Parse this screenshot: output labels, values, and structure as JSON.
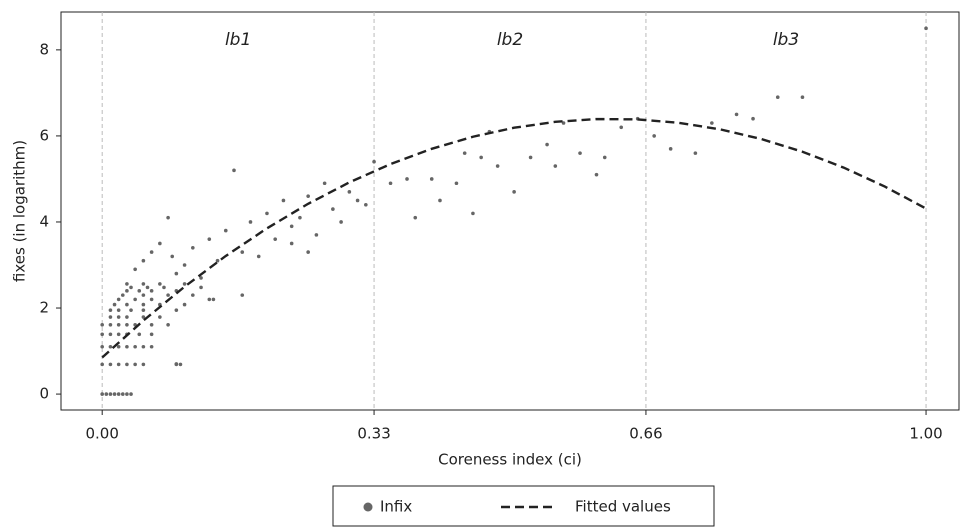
{
  "chart_data": {
    "type": "scatter",
    "x_label": "Coreness index (ci)",
    "y_label": "fixes (in logarithm)",
    "annotations": [
      "lb1",
      "lb2",
      "lb3"
    ],
    "xlim": [
      -0.05,
      1.04
    ],
    "ylim": [
      -0.37,
      8.88
    ],
    "xticks": [
      {
        "value": 0,
        "label": "0.00"
      },
      0.33,
      0.66,
      {
        "value": 1,
        "label": "1.00"
      }
    ],
    "yticks": [
      0,
      2,
      4,
      6,
      8
    ],
    "grid": "x",
    "legend": "bottom",
    "series": [
      {
        "name": "Infix",
        "type": "scatter",
        "color": "#666666",
        "x": [
          0,
          0.005,
          0.01,
          0.015,
          0.02,
          0.025,
          0.03,
          0.035,
          0,
          0.01,
          0.02,
          0.03,
          0.04,
          0.05,
          0.09,
          0.095,
          0,
          0.01,
          0.02,
          0.03,
          0.04,
          0.05,
          0.06,
          0,
          0.01,
          0.02,
          0.03,
          0.045,
          0.06,
          0,
          0.01,
          0.02,
          0.03,
          0.04,
          0.06,
          0.08,
          0.01,
          0.02,
          0.03,
          0.05,
          0.07,
          0.01,
          0.02,
          0.035,
          0.05,
          0.09,
          0.015,
          0.03,
          0.05,
          0.07,
          0.1,
          0.02,
          0.04,
          0.06,
          0.135,
          0.025,
          0.05,
          0.08,
          0.11,
          0.03,
          0.045,
          0.06,
          0.09,
          0.035,
          0.055,
          0.075,
          0.12,
          0.03,
          0.05,
          0.07,
          0.1,
          0.04,
          0.05,
          0.06,
          0.07,
          0.08,
          0.085,
          0.09,
          0.1,
          0.11,
          0.12,
          0.13,
          0.14,
          0.15,
          0.16,
          0.17,
          0.18,
          0.19,
          0.2,
          0.21,
          0.22,
          0.23,
          0.24,
          0.25,
          0.26,
          0.27,
          0.28,
          0.29,
          0.3,
          0.31,
          0.32,
          0.33,
          0.35,
          0.37,
          0.38,
          0.4,
          0.41,
          0.43,
          0.44,
          0.46,
          0.47,
          0.48,
          0.5,
          0.52,
          0.54,
          0.56,
          0.58,
          0.6,
          0.61,
          0.63,
          0.65,
          0.67,
          0.69,
          0.72,
          0.74,
          0.77,
          0.79,
          0.82,
          0.85,
          1.0,
          0.25,
          0.45,
          0.55,
          0.17,
          0.13,
          0.09,
          0.23
        ],
        "values": [
          0,
          0,
          0,
          0,
          0,
          0,
          0,
          0,
          0.69,
          0.69,
          0.69,
          0.69,
          0.69,
          0.69,
          0.69,
          0.69,
          1.1,
          1.1,
          1.1,
          1.1,
          1.1,
          1.1,
          1.1,
          1.39,
          1.39,
          1.39,
          1.39,
          1.39,
          1.39,
          1.61,
          1.61,
          1.61,
          1.61,
          1.61,
          1.61,
          1.61,
          1.79,
          1.79,
          1.79,
          1.79,
          1.79,
          1.95,
          1.95,
          1.95,
          1.95,
          1.95,
          2.08,
          2.08,
          2.08,
          2.08,
          2.08,
          2.2,
          2.2,
          2.2,
          2.2,
          2.3,
          2.3,
          2.3,
          2.3,
          2.4,
          2.4,
          2.4,
          2.4,
          2.48,
          2.48,
          2.48,
          2.48,
          2.56,
          2.56,
          2.56,
          2.56,
          2.9,
          3.1,
          3.3,
          3.5,
          4.1,
          3.2,
          2.8,
          3.0,
          3.4,
          2.7,
          3.6,
          3.1,
          3.8,
          5.2,
          3.3,
          4.0,
          3.2,
          4.2,
          3.6,
          4.5,
          3.9,
          4.1,
          4.6,
          3.7,
          4.9,
          4.3,
          4.0,
          4.7,
          4.5,
          4.4,
          5.4,
          4.9,
          5.0,
          4.1,
          5.0,
          4.5,
          4.9,
          5.6,
          5.5,
          6.1,
          5.3,
          4.7,
          5.5,
          5.8,
          6.3,
          5.6,
          5.1,
          5.5,
          6.2,
          6.4,
          6.0,
          5.7,
          5.6,
          6.3,
          6.5,
          6.4,
          6.9,
          6.9,
          8.5,
          3.3,
          4.2,
          5.3,
          2.3,
          2.2,
          0.7,
          3.5
        ]
      },
      {
        "name": "Fitted values",
        "type": "line",
        "color": "#222222",
        "x": [
          0,
          0.05,
          0.1,
          0.15,
          0.2,
          0.25,
          0.3,
          0.35,
          0.4,
          0.45,
          0.5,
          0.55,
          0.6,
          0.65,
          0.7,
          0.75,
          0.8,
          0.85,
          0.9,
          0.95,
          1.0
        ],
        "values": [
          0.85,
          1.709,
          2.496,
          3.21,
          3.852,
          4.423,
          4.92,
          5.346,
          5.7,
          5.981,
          6.19,
          6.327,
          6.392,
          6.384,
          6.304,
          6.153,
          5.928,
          5.632,
          5.264,
          4.823,
          4.31
        ]
      }
    ]
  }
}
